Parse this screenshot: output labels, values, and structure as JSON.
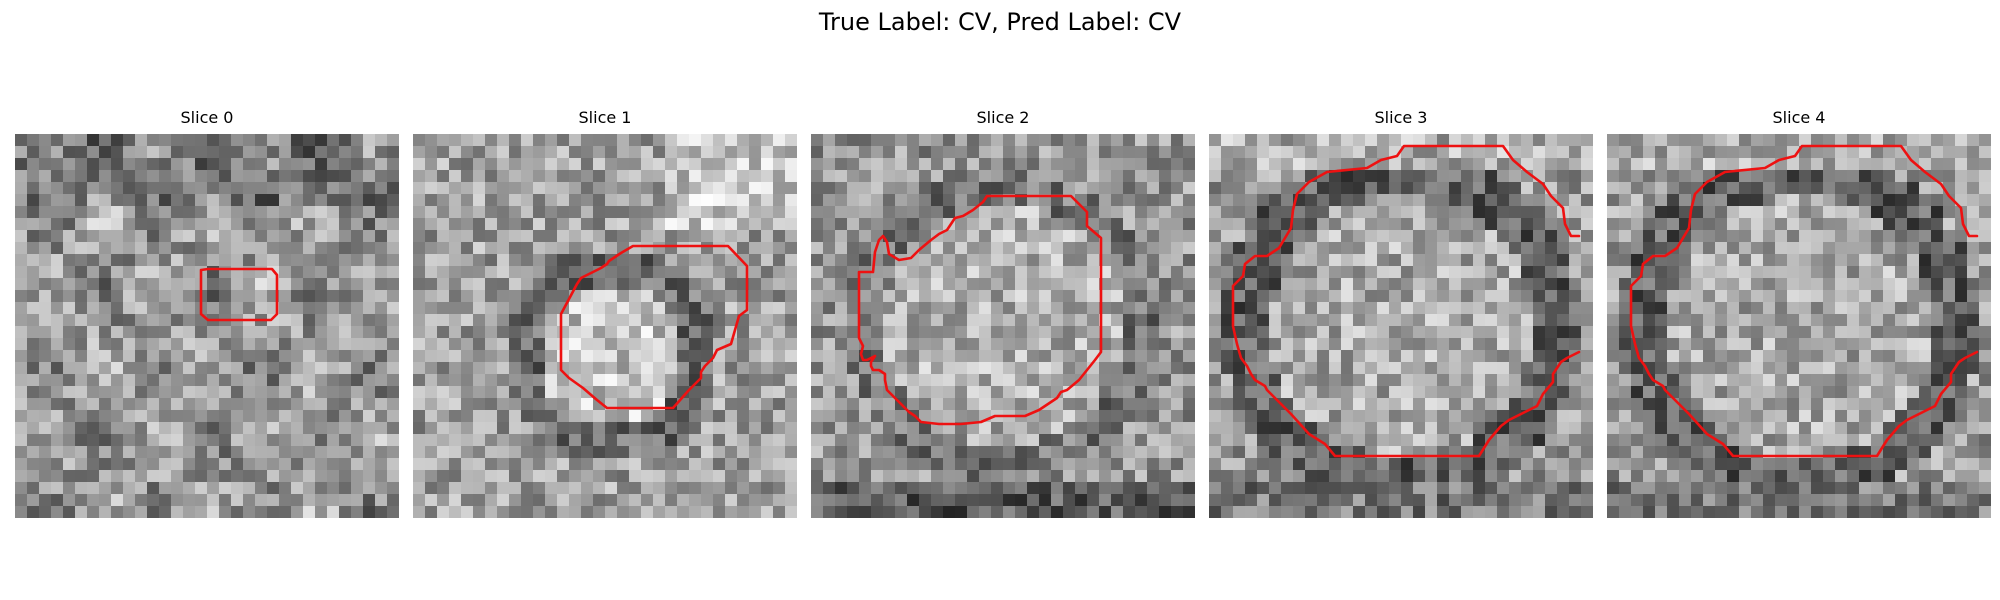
{
  "figure": {
    "title": "True Label: CV, Pred Label: CV",
    "contour_color": "#ee1111"
  },
  "panels": [
    {
      "title": "Slice 0",
      "image_name": "slice-0-image",
      "contour_name": "slice-0-contour",
      "seed": 11
    },
    {
      "title": "Slice 1",
      "image_name": "slice-1-image",
      "contour_name": "slice-1-contour",
      "seed": 23
    },
    {
      "title": "Slice 2",
      "image_name": "slice-2-image",
      "contour_name": "slice-2-contour",
      "seed": 37
    },
    {
      "title": "Slice 3",
      "image_name": "slice-3-image",
      "contour_name": "slice-3-contour",
      "seed": 41
    },
    {
      "title": "Slice 4",
      "image_name": "slice-4-image",
      "contour_name": "slice-4-contour",
      "seed": 53
    }
  ]
}
